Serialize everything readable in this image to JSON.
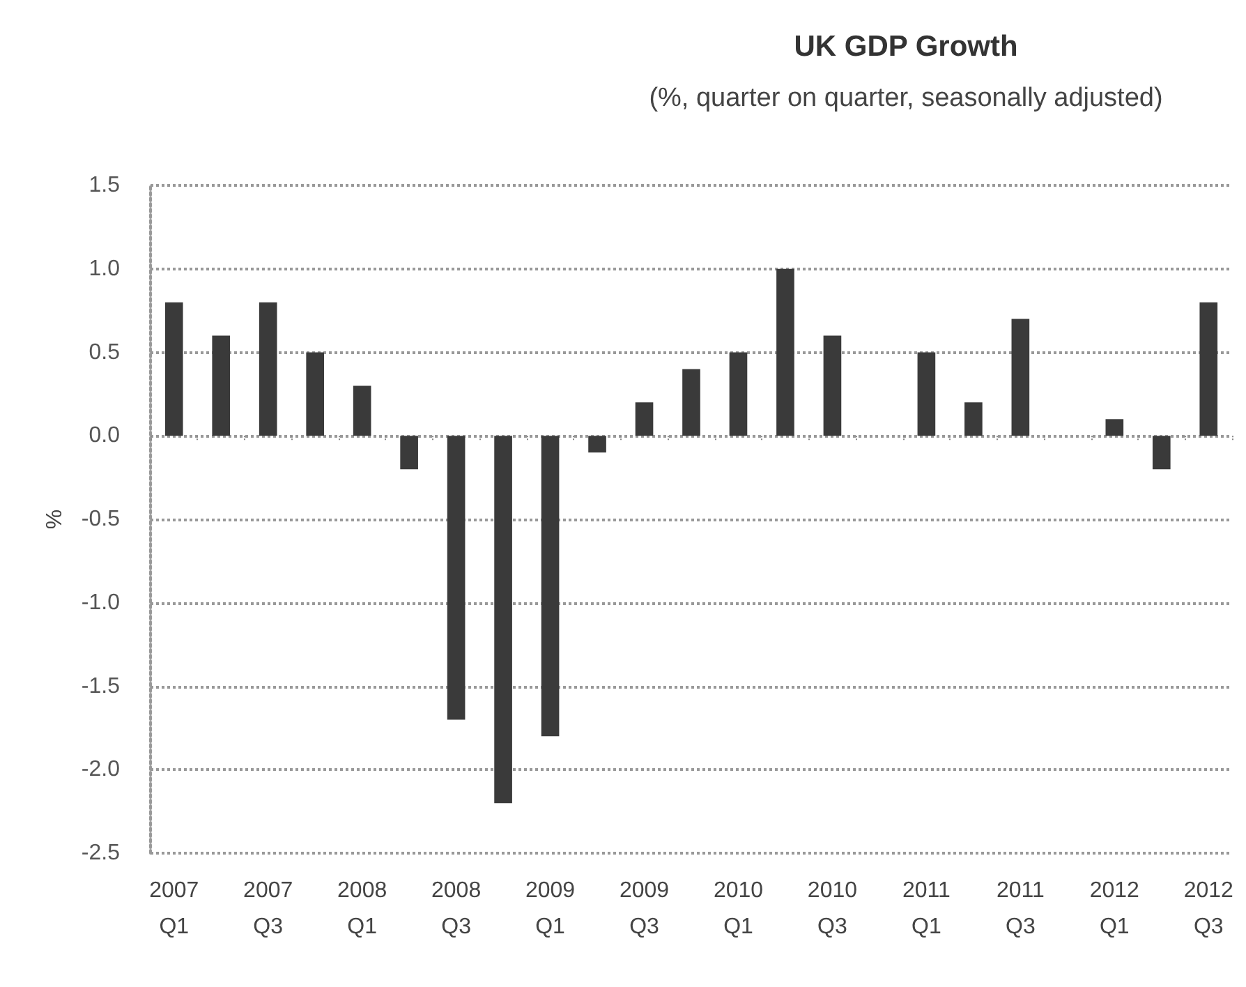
{
  "chart_data": {
    "type": "bar",
    "title": "UK GDP Growth",
    "subtitle": "(%, quarter on quarter, seasonally adjusted)",
    "ylabel": "%",
    "categories": [
      "2007\nQ1",
      null,
      "2007\nQ3",
      null,
      "2008\nQ1",
      null,
      "2008\nQ3",
      null,
      "2009\nQ1",
      null,
      "2009\nQ3",
      null,
      "2010\nQ1",
      null,
      "2010\nQ3",
      null,
      "2011\nQ1",
      null,
      "2011\nQ3",
      null,
      "2012\nQ1",
      null,
      "2012\nQ3"
    ],
    "values": [
      0.8,
      0.6,
      0.8,
      0.5,
      0.3,
      -0.2,
      -1.7,
      -2.2,
      -1.8,
      -0.1,
      0.2,
      0.4,
      0.5,
      1.0,
      0.6,
      0,
      0.5,
      0.2,
      0.7,
      0,
      0.1,
      -0.2,
      0.8
    ],
    "color": "#3a3a3a",
    "ylim": [
      -2.5,
      1.5
    ],
    "yticks": [
      {
        "value": -2.5,
        "label": "-2.5"
      },
      {
        "value": -2,
        "label": "-2.0"
      },
      {
        "value": -1.5,
        "label": "-1.5"
      },
      {
        "value": -1,
        "label": "-1.0"
      },
      {
        "value": -0.5,
        "label": "-0.5"
      },
      {
        "value": 0,
        "label": "0.0"
      },
      {
        "value": 0.5,
        "label": "0.5"
      },
      {
        "value": 1,
        "label": "1.0"
      },
      {
        "value": 1.5,
        "label": "1.5"
      }
    ],
    "grid": "y"
  }
}
